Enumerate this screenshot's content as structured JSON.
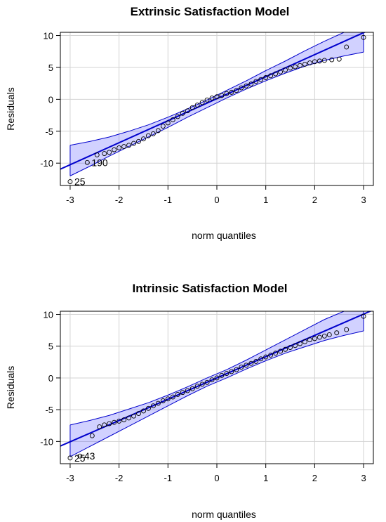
{
  "chart_data": [
    {
      "type": "scatter",
      "subtype": "qq-plot",
      "title": "Extrinsic Satisfaction Model",
      "xlabel": "norm quantiles",
      "ylabel": "Residuals",
      "xlim": [
        -3.2,
        3.2
      ],
      "ylim": [
        -13.5,
        10.5
      ],
      "xticks": [
        -3,
        -2,
        -1,
        0,
        1,
        2,
        3
      ],
      "yticks": [
        -10,
        -5,
        0,
        5,
        10
      ],
      "grid": true,
      "line_color": "#0000cc",
      "band_color": "#0000ff",
      "reference_line": {
        "intercept": 0.1,
        "slope": 3.45
      },
      "band": [
        {
          "x": -3.0,
          "lo": -12.0,
          "hi": -7.2
        },
        {
          "x": -2.6,
          "lo": -10.5,
          "hi": -6.6
        },
        {
          "x": -2.2,
          "lo": -8.9,
          "hi": -5.9
        },
        {
          "x": -1.8,
          "lo": -7.4,
          "hi": -5.0
        },
        {
          "x": -1.4,
          "lo": -5.9,
          "hi": -4.0
        },
        {
          "x": -1.0,
          "lo": -4.4,
          "hi": -2.8
        },
        {
          "x": -0.6,
          "lo": -2.8,
          "hi": -1.5
        },
        {
          "x": -0.2,
          "lo": -1.3,
          "hi": -0.1
        },
        {
          "x": 0.2,
          "lo": 0.2,
          "hi": 1.4
        },
        {
          "x": 0.6,
          "lo": 1.6,
          "hi": 2.9
        },
        {
          "x": 1.0,
          "lo": 2.9,
          "hi": 4.5
        },
        {
          "x": 1.4,
          "lo": 4.1,
          "hi": 6.0
        },
        {
          "x": 1.8,
          "lo": 5.2,
          "hi": 7.6
        },
        {
          "x": 2.2,
          "lo": 6.1,
          "hi": 9.1
        },
        {
          "x": 2.6,
          "lo": 6.8,
          "hi": 10.6
        },
        {
          "x": 3.0,
          "lo": 7.4,
          "hi": 12.1
        }
      ],
      "points": [
        {
          "x": -3.0,
          "y": -12.9
        },
        {
          "x": -2.65,
          "y": -9.9
        },
        {
          "x": -2.45,
          "y": -8.7
        },
        {
          "x": -2.3,
          "y": -8.5
        },
        {
          "x": -2.2,
          "y": -8.3
        },
        {
          "x": -2.1,
          "y": -7.9
        },
        {
          "x": -2.0,
          "y": -7.6
        },
        {
          "x": -1.9,
          "y": -7.4
        },
        {
          "x": -1.8,
          "y": -7.2
        },
        {
          "x": -1.7,
          "y": -6.9
        },
        {
          "x": -1.6,
          "y": -6.6
        },
        {
          "x": -1.5,
          "y": -6.2
        },
        {
          "x": -1.4,
          "y": -5.7
        },
        {
          "x": -1.3,
          "y": -5.4
        },
        {
          "x": -1.2,
          "y": -4.9
        },
        {
          "x": -1.1,
          "y": -4.2
        },
        {
          "x": -1.0,
          "y": -3.7
        },
        {
          "x": -0.9,
          "y": -3.2
        },
        {
          "x": -0.8,
          "y": -2.7
        },
        {
          "x": -0.7,
          "y": -2.2
        },
        {
          "x": -0.6,
          "y": -1.8
        },
        {
          "x": -0.5,
          "y": -1.3
        },
        {
          "x": -0.4,
          "y": -0.9
        },
        {
          "x": -0.3,
          "y": -0.5
        },
        {
          "x": -0.2,
          "y": -0.1
        },
        {
          "x": -0.1,
          "y": 0.2
        },
        {
          "x": 0.0,
          "y": 0.4
        },
        {
          "x": 0.1,
          "y": 0.6
        },
        {
          "x": 0.2,
          "y": 0.9
        },
        {
          "x": 0.3,
          "y": 1.1
        },
        {
          "x": 0.4,
          "y": 1.4
        },
        {
          "x": 0.5,
          "y": 1.8
        },
        {
          "x": 0.6,
          "y": 2.1
        },
        {
          "x": 0.7,
          "y": 2.4
        },
        {
          "x": 0.8,
          "y": 2.8
        },
        {
          "x": 0.9,
          "y": 3.1
        },
        {
          "x": 1.0,
          "y": 3.4
        },
        {
          "x": 1.1,
          "y": 3.7
        },
        {
          "x": 1.2,
          "y": 4.0
        },
        {
          "x": 1.3,
          "y": 4.3
        },
        {
          "x": 1.4,
          "y": 4.6
        },
        {
          "x": 1.5,
          "y": 4.9
        },
        {
          "x": 1.6,
          "y": 5.1
        },
        {
          "x": 1.7,
          "y": 5.3
        },
        {
          "x": 1.8,
          "y": 5.5
        },
        {
          "x": 1.9,
          "y": 5.7
        },
        {
          "x": 2.0,
          "y": 5.9
        },
        {
          "x": 2.1,
          "y": 6.0
        },
        {
          "x": 2.2,
          "y": 6.1
        },
        {
          "x": 2.35,
          "y": 6.2
        },
        {
          "x": 2.5,
          "y": 6.3
        },
        {
          "x": 2.65,
          "y": 8.2
        },
        {
          "x": 3.0,
          "y": 9.7
        }
      ],
      "labels": [
        {
          "text": "190",
          "x": -2.65,
          "y": -9.9
        },
        {
          "text": "25",
          "x": -3.0,
          "y": -12.9
        }
      ]
    },
    {
      "type": "scatter",
      "subtype": "qq-plot",
      "title": "Intrinsic Satisfaction Model",
      "xlabel": "norm quantiles",
      "ylabel": "Residuals",
      "xlim": [
        -3.2,
        3.2
      ],
      "ylim": [
        -13.5,
        10.5
      ],
      "xticks": [
        -3,
        -2,
        -1,
        0,
        1,
        2,
        3
      ],
      "yticks": [
        -10,
        -5,
        0,
        5,
        10
      ],
      "grid": true,
      "line_color": "#0000cc",
      "band_color": "#0000ff",
      "reference_line": {
        "intercept": 0.0,
        "slope": 3.35
      },
      "band": [
        {
          "x": -3.0,
          "lo": -12.4,
          "hi": -7.4
        },
        {
          "x": -2.6,
          "lo": -10.8,
          "hi": -6.7
        },
        {
          "x": -2.2,
          "lo": -9.2,
          "hi": -5.9
        },
        {
          "x": -1.8,
          "lo": -7.6,
          "hi": -4.9
        },
        {
          "x": -1.4,
          "lo": -6.0,
          "hi": -3.9
        },
        {
          "x": -1.0,
          "lo": -4.4,
          "hi": -2.7
        },
        {
          "x": -0.6,
          "lo": -2.8,
          "hi": -1.4
        },
        {
          "x": -0.2,
          "lo": -1.3,
          "hi": 0.0
        },
        {
          "x": 0.2,
          "lo": 0.0,
          "hi": 1.3
        },
        {
          "x": 0.6,
          "lo": 1.4,
          "hi": 2.8
        },
        {
          "x": 1.0,
          "lo": 2.7,
          "hi": 4.4
        },
        {
          "x": 1.4,
          "lo": 3.9,
          "hi": 6.0
        },
        {
          "x": 1.8,
          "lo": 4.9,
          "hi": 7.6
        },
        {
          "x": 2.2,
          "lo": 5.9,
          "hi": 9.2
        },
        {
          "x": 2.6,
          "lo": 6.7,
          "hi": 10.8
        },
        {
          "x": 3.0,
          "lo": 7.4,
          "hi": 12.4
        }
      ],
      "points": [
        {
          "x": -3.0,
          "y": -12.6
        },
        {
          "x": -2.8,
          "y": -12.3
        },
        {
          "x": -2.55,
          "y": -9.1
        },
        {
          "x": -2.4,
          "y": -7.7
        },
        {
          "x": -2.3,
          "y": -7.4
        },
        {
          "x": -2.2,
          "y": -7.2
        },
        {
          "x": -2.1,
          "y": -7.0
        },
        {
          "x": -2.0,
          "y": -6.8
        },
        {
          "x": -1.9,
          "y": -6.6
        },
        {
          "x": -1.8,
          "y": -6.3
        },
        {
          "x": -1.7,
          "y": -6.0
        },
        {
          "x": -1.6,
          "y": -5.6
        },
        {
          "x": -1.5,
          "y": -5.2
        },
        {
          "x": -1.4,
          "y": -4.8
        },
        {
          "x": -1.3,
          "y": -4.4
        },
        {
          "x": -1.2,
          "y": -4.0
        },
        {
          "x": -1.1,
          "y": -3.6
        },
        {
          "x": -1.0,
          "y": -3.3
        },
        {
          "x": -0.9,
          "y": -3.0
        },
        {
          "x": -0.8,
          "y": -2.6
        },
        {
          "x": -0.7,
          "y": -2.3
        },
        {
          "x": -0.6,
          "y": -2.0
        },
        {
          "x": -0.5,
          "y": -1.7
        },
        {
          "x": -0.4,
          "y": -1.3
        },
        {
          "x": -0.3,
          "y": -1.0
        },
        {
          "x": -0.2,
          "y": -0.7
        },
        {
          "x": -0.1,
          "y": -0.3
        },
        {
          "x": 0.0,
          "y": 0.0
        },
        {
          "x": 0.1,
          "y": 0.4
        },
        {
          "x": 0.2,
          "y": 0.7
        },
        {
          "x": 0.3,
          "y": 1.0
        },
        {
          "x": 0.4,
          "y": 1.3
        },
        {
          "x": 0.5,
          "y": 1.7
        },
        {
          "x": 0.6,
          "y": 2.0
        },
        {
          "x": 0.7,
          "y": 2.3
        },
        {
          "x": 0.8,
          "y": 2.6
        },
        {
          "x": 0.9,
          "y": 3.0
        },
        {
          "x": 1.0,
          "y": 3.3
        },
        {
          "x": 1.1,
          "y": 3.6
        },
        {
          "x": 1.2,
          "y": 3.9
        },
        {
          "x": 1.3,
          "y": 4.2
        },
        {
          "x": 1.4,
          "y": 4.5
        },
        {
          "x": 1.5,
          "y": 4.8
        },
        {
          "x": 1.6,
          "y": 5.1
        },
        {
          "x": 1.7,
          "y": 5.4
        },
        {
          "x": 1.8,
          "y": 5.7
        },
        {
          "x": 1.9,
          "y": 6.0
        },
        {
          "x": 2.0,
          "y": 6.2
        },
        {
          "x": 2.1,
          "y": 6.4
        },
        {
          "x": 2.2,
          "y": 6.6
        },
        {
          "x": 2.3,
          "y": 6.8
        },
        {
          "x": 2.45,
          "y": 7.1
        },
        {
          "x": 2.65,
          "y": 7.6
        },
        {
          "x": 3.0,
          "y": 9.7
        }
      ],
      "labels": [
        {
          "text": "25",
          "x": -3.0,
          "y": -12.6
        },
        {
          "text": "43",
          "x": -2.8,
          "y": -12.3
        }
      ]
    }
  ]
}
